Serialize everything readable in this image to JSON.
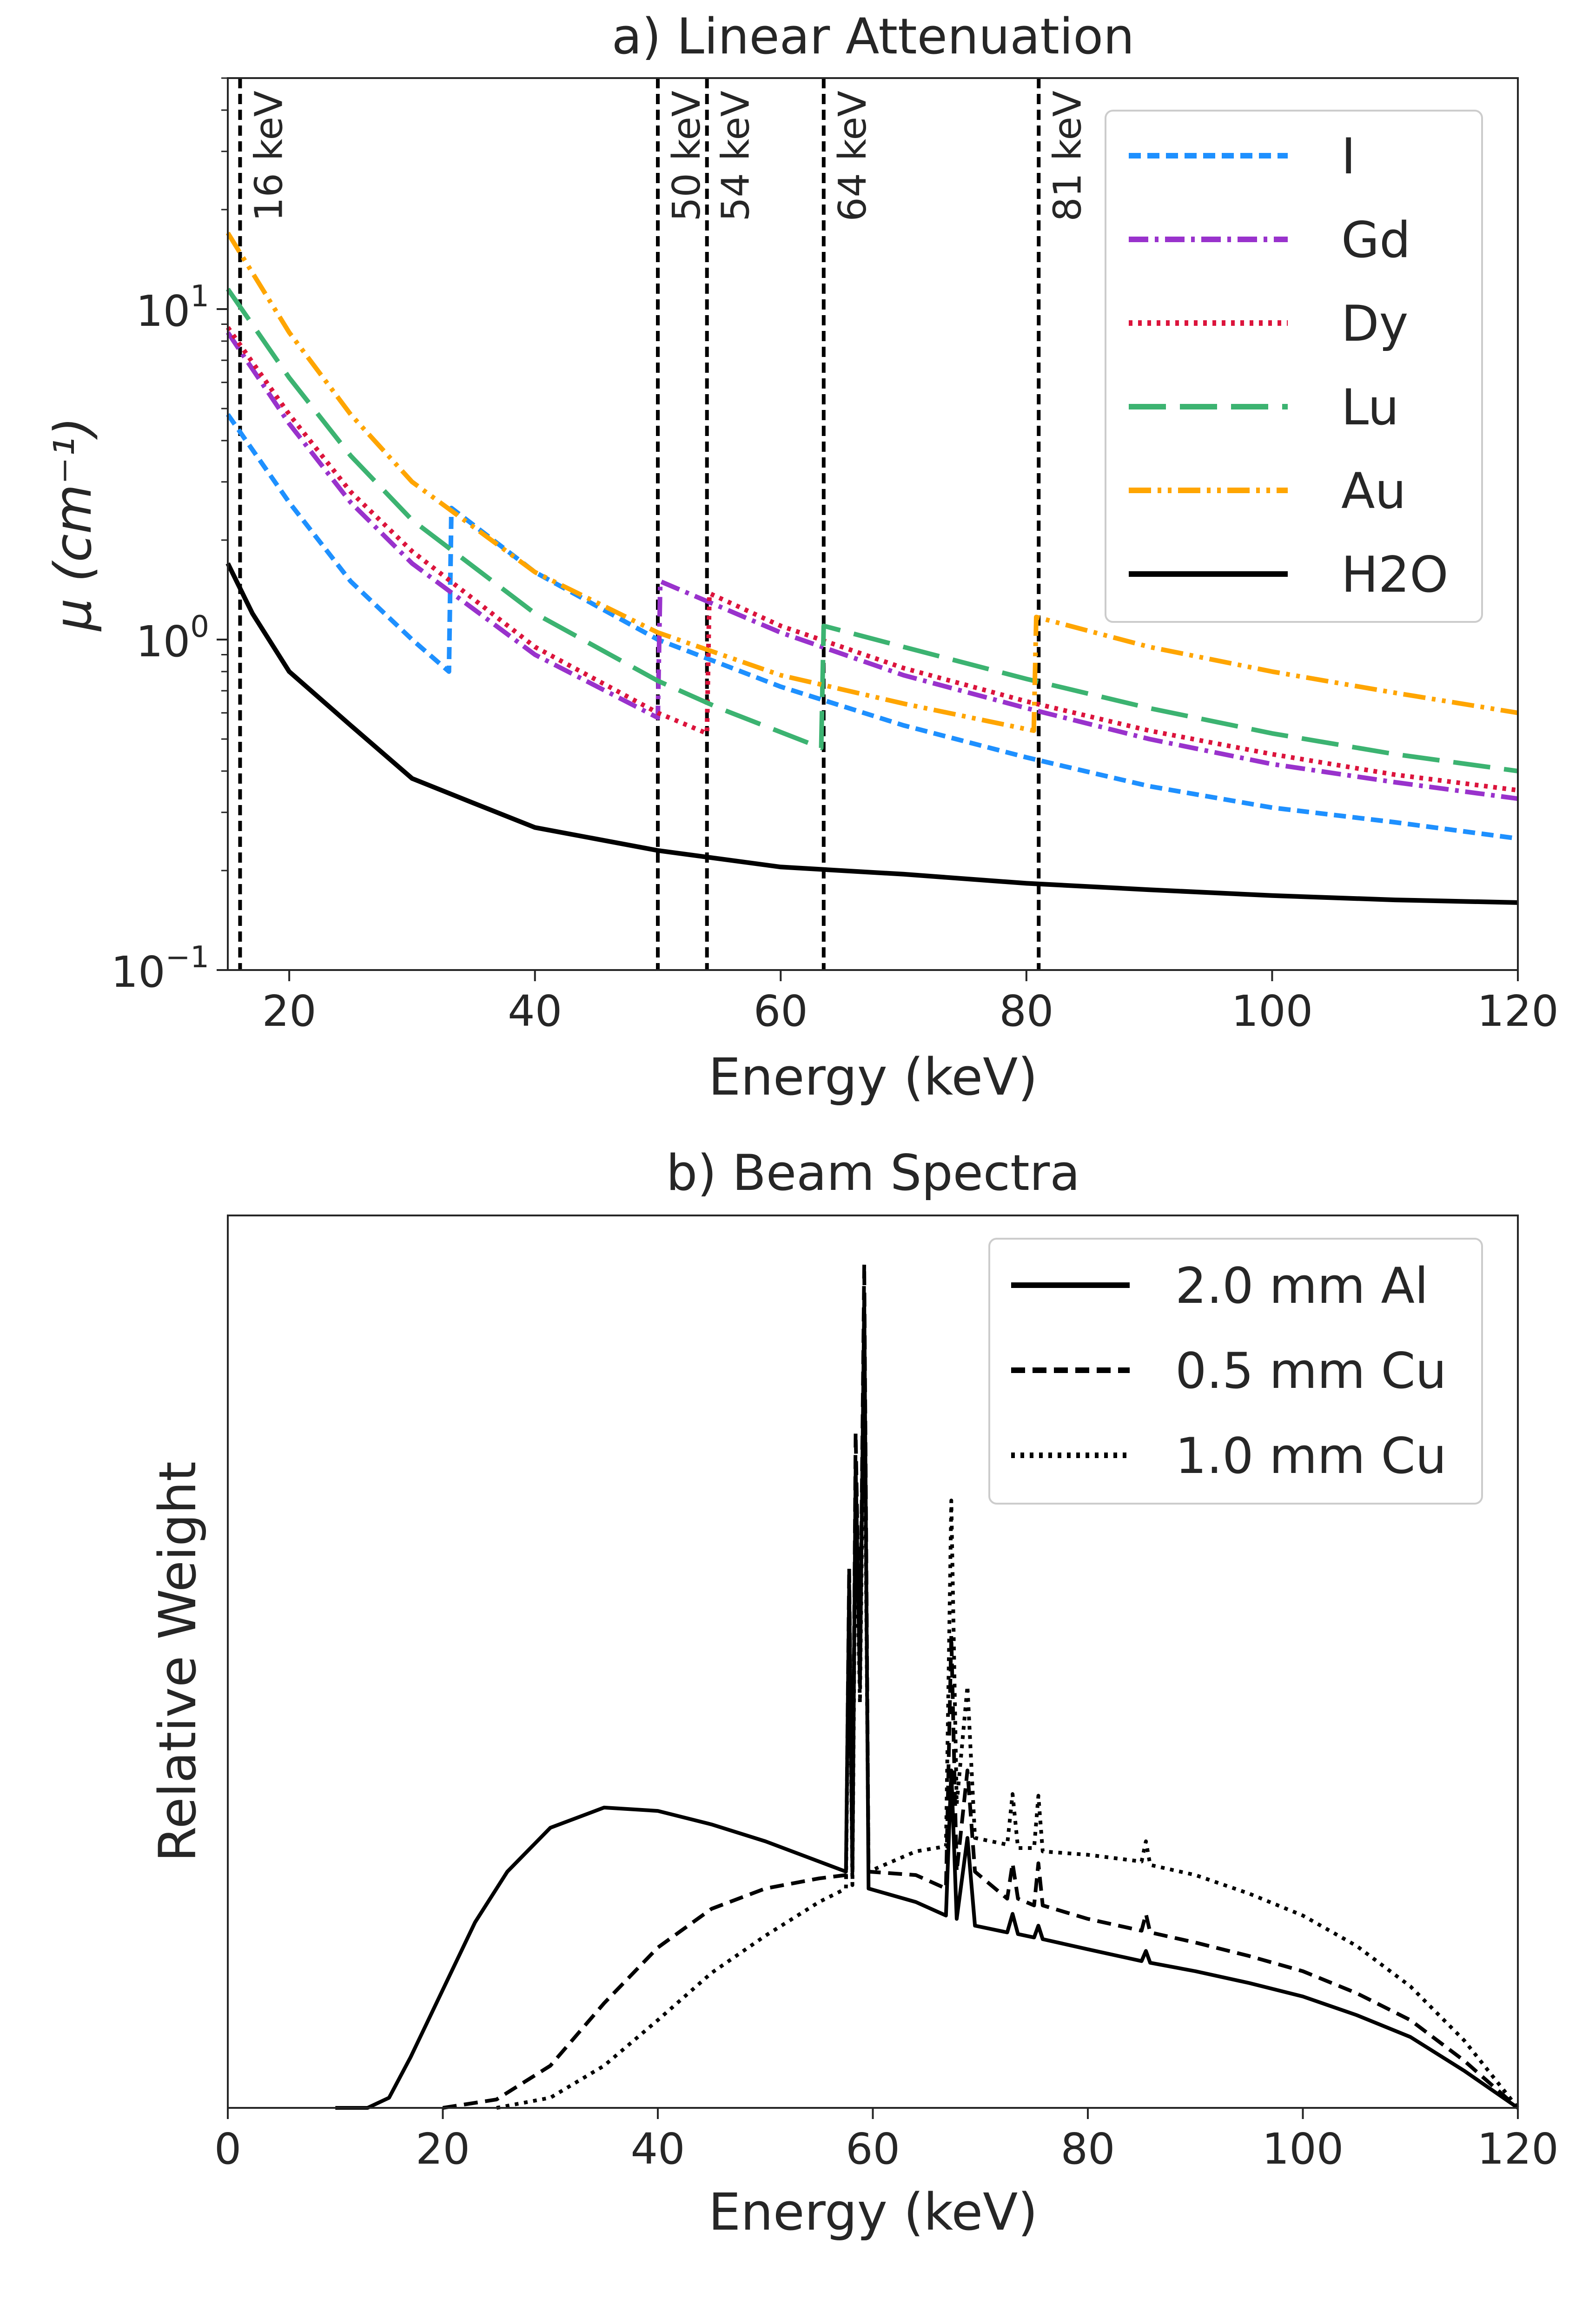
{
  "chart_data": [
    {
      "type": "line",
      "title": "a) Linear Attenuation",
      "xlabel": "Energy (keV)",
      "ylabel": "μ (cm⁻¹)",
      "yscale": "log",
      "xlim": [
        15,
        120
      ],
      "ylim": [
        0.1,
        50
      ],
      "xticks": [
        20,
        40,
        60,
        80,
        100,
        120
      ],
      "yticks": [
        {
          "value": 0.1,
          "base": "10",
          "exp": "−1"
        },
        {
          "value": 1,
          "base": "10",
          "exp": "0"
        },
        {
          "value": 10,
          "base": "10",
          "exp": "1"
        }
      ],
      "vlines": [
        {
          "x": 16,
          "label": "16 keV"
        },
        {
          "x": 50,
          "label": "50 keV"
        },
        {
          "x": 54,
          "label": "54 keV"
        },
        {
          "x": 63.5,
          "label": "64 keV"
        },
        {
          "x": 81,
          "label": "81 keV"
        }
      ],
      "legend_position": "top-right",
      "series": [
        {
          "name": "I",
          "color": "#1E90FF",
          "dash": "dash",
          "points": [
            [
              15,
              4.8
            ],
            [
              20,
              2.6
            ],
            [
              25,
              1.5
            ],
            [
              30,
              1.0
            ],
            [
              33,
              0.8
            ],
            [
              33.2,
              2.5
            ],
            [
              40,
              1.6
            ],
            [
              50,
              1.0
            ],
            [
              60,
              0.72
            ],
            [
              70,
              0.55
            ],
            [
              80,
              0.44
            ],
            [
              90,
              0.36
            ],
            [
              100,
              0.31
            ],
            [
              110,
              0.28
            ],
            [
              120,
              0.25
            ]
          ]
        },
        {
          "name": "Gd",
          "color": "#9932CC",
          "dash": "dashdot",
          "points": [
            [
              15,
              8.5
            ],
            [
              20,
              4.5
            ],
            [
              25,
              2.6
            ],
            [
              30,
              1.7
            ],
            [
              40,
              0.9
            ],
            [
              50,
              0.58
            ],
            [
              50.2,
              1.5
            ],
            [
              60,
              1.05
            ],
            [
              70,
              0.78
            ],
            [
              80,
              0.62
            ],
            [
              90,
              0.5
            ],
            [
              100,
              0.42
            ],
            [
              110,
              0.37
            ],
            [
              120,
              0.33
            ]
          ]
        },
        {
          "name": "Dy",
          "color": "#DC143C",
          "dash": "dot",
          "points": [
            [
              15,
              8.8
            ],
            [
              20,
              4.8
            ],
            [
              25,
              2.8
            ],
            [
              30,
              1.85
            ],
            [
              40,
              0.95
            ],
            [
              50,
              0.6
            ],
            [
              54,
              0.52
            ],
            [
              54.2,
              1.38
            ],
            [
              60,
              1.1
            ],
            [
              70,
              0.82
            ],
            [
              80,
              0.65
            ],
            [
              90,
              0.53
            ],
            [
              100,
              0.45
            ],
            [
              110,
              0.39
            ],
            [
              120,
              0.35
            ]
          ]
        },
        {
          "name": "Lu",
          "color": "#3CB371",
          "dash": "longdash",
          "points": [
            [
              15,
              11.5
            ],
            [
              20,
              6.2
            ],
            [
              25,
              3.6
            ],
            [
              30,
              2.3
            ],
            [
              40,
              1.2
            ],
            [
              50,
              0.75
            ],
            [
              55,
              0.62
            ],
            [
              63.3,
              0.47
            ],
            [
              63.5,
              1.1
            ],
            [
              70,
              0.95
            ],
            [
              80,
              0.76
            ],
            [
              90,
              0.62
            ],
            [
              100,
              0.52
            ],
            [
              110,
              0.45
            ],
            [
              120,
              0.4
            ]
          ]
        },
        {
          "name": "Au",
          "color": "#FFA500",
          "dash": "dashdotdot",
          "points": [
            [
              15,
              17
            ],
            [
              20,
              8.5
            ],
            [
              25,
              4.8
            ],
            [
              30,
              3.0
            ],
            [
              40,
              1.6
            ],
            [
              50,
              1.05
            ],
            [
              60,
              0.78
            ],
            [
              70,
              0.64
            ],
            [
              80.6,
              0.53
            ],
            [
              80.8,
              1.17
            ],
            [
              90,
              0.95
            ],
            [
              100,
              0.8
            ],
            [
              110,
              0.69
            ],
            [
              120,
              0.6
            ]
          ]
        },
        {
          "name": "H2O",
          "color": "#000000",
          "dash": "solid",
          "points": [
            [
              15,
              1.7
            ],
            [
              17,
              1.2
            ],
            [
              20,
              0.8
            ],
            [
              25,
              0.55
            ],
            [
              30,
              0.38
            ],
            [
              35,
              0.32
            ],
            [
              40,
              0.27
            ],
            [
              50,
              0.23
            ],
            [
              60,
              0.205
            ],
            [
              70,
              0.195
            ],
            [
              80,
              0.183
            ],
            [
              90,
              0.175
            ],
            [
              100,
              0.168
            ],
            [
              110,
              0.163
            ],
            [
              120,
              0.16
            ]
          ]
        }
      ]
    },
    {
      "type": "line",
      "title": "b) Beam Spectra",
      "xlabel": "Energy (keV)",
      "ylabel": "Relative Weight",
      "xlim": [
        0,
        120
      ],
      "ylim": [
        0,
        1
      ],
      "xticks": [
        0,
        20,
        40,
        60,
        80,
        100,
        120
      ],
      "legend_position": "top-right",
      "series": [
        {
          "name": "2.0 mm Al",
          "color": "#000000",
          "dash": "solid",
          "points": [
            [
              10,
              0
            ],
            [
              13,
              0
            ],
            [
              15,
              0.006
            ],
            [
              17,
              0.03
            ],
            [
              20,
              0.07
            ],
            [
              23,
              0.11
            ],
            [
              26,
              0.14
            ],
            [
              30,
              0.166
            ],
            [
              35,
              0.178
            ],
            [
              40,
              0.176
            ],
            [
              45,
              0.168
            ],
            [
              50,
              0.158
            ],
            [
              55,
              0.146
            ],
            [
              57.5,
              0.14
            ],
            [
              57.8,
              0.31
            ],
            [
              58.1,
              0.14
            ],
            [
              58.4,
              0.38
            ],
            [
              58.8,
              0.25
            ],
            [
              59.2,
              0.48
            ],
            [
              59.6,
              0.13
            ],
            [
              64,
              0.122
            ],
            [
              66.8,
              0.114
            ],
            [
              67.3,
              0.2
            ],
            [
              67.8,
              0.112
            ],
            [
              68.8,
              0.16
            ],
            [
              69.5,
              0.108
            ],
            [
              72.5,
              0.104
            ],
            [
              73,
              0.115
            ],
            [
              73.5,
              0.103
            ],
            [
              75,
              0.101
            ],
            [
              75.4,
              0.108
            ],
            [
              75.8,
              0.1
            ],
            [
              80,
              0.094
            ],
            [
              85,
              0.087
            ],
            [
              85.4,
              0.093
            ],
            [
              85.8,
              0.086
            ],
            [
              90,
              0.081
            ],
            [
              95,
              0.074
            ],
            [
              100,
              0.066
            ],
            [
              105,
              0.055
            ],
            [
              110,
              0.042
            ],
            [
              115,
              0.022
            ],
            [
              120,
              0
            ]
          ]
        },
        {
          "name": "0.5 mm Cu",
          "color": "#000000",
          "dash": "dash",
          "points": [
            [
              20,
              0
            ],
            [
              25,
              0.005
            ],
            [
              30,
              0.025
            ],
            [
              35,
              0.062
            ],
            [
              40,
              0.095
            ],
            [
              45,
              0.118
            ],
            [
              50,
              0.13
            ],
            [
              55,
              0.136
            ],
            [
              57.5,
              0.138
            ],
            [
              57.8,
              0.32
            ],
            [
              58.1,
              0.14
            ],
            [
              58.4,
              0.4
            ],
            [
              58.8,
              0.26
            ],
            [
              59.2,
              0.5
            ],
            [
              59.6,
              0.14
            ],
            [
              64,
              0.138
            ],
            [
              66.8,
              0.13
            ],
            [
              67.3,
              0.28
            ],
            [
              67.8,
              0.14
            ],
            [
              68.8,
              0.2
            ],
            [
              69.5,
              0.14
            ],
            [
              72.5,
              0.124
            ],
            [
              73,
              0.145
            ],
            [
              73.5,
              0.124
            ],
            [
              75,
              0.12
            ],
            [
              75.4,
              0.145
            ],
            [
              75.8,
              0.12
            ],
            [
              80,
              0.112
            ],
            [
              85,
              0.105
            ],
            [
              85.4,
              0.115
            ],
            [
              85.8,
              0.104
            ],
            [
              90,
              0.098
            ],
            [
              95,
              0.09
            ],
            [
              100,
              0.081
            ],
            [
              105,
              0.068
            ],
            [
              110,
              0.052
            ],
            [
              115,
              0.028
            ],
            [
              120,
              0
            ]
          ]
        },
        {
          "name": "1.0 mm Cu",
          "color": "#000000",
          "dash": "dot",
          "points": [
            [
              25,
              0
            ],
            [
              30,
              0.006
            ],
            [
              35,
              0.025
            ],
            [
              40,
              0.052
            ],
            [
              45,
              0.08
            ],
            [
              50,
              0.102
            ],
            [
              55,
              0.122
            ],
            [
              57.5,
              0.13
            ],
            [
              57.8,
              0.3
            ],
            [
              58.1,
              0.132
            ],
            [
              58.4,
              0.36
            ],
            [
              58.8,
              0.24
            ],
            [
              59.2,
              0.44
            ],
            [
              59.6,
              0.14
            ],
            [
              64,
              0.152
            ],
            [
              66.8,
              0.155
            ],
            [
              67.3,
              0.36
            ],
            [
              67.8,
              0.18
            ],
            [
              68.8,
              0.25
            ],
            [
              69.5,
              0.16
            ],
            [
              72.5,
              0.156
            ],
            [
              73,
              0.186
            ],
            [
              73.5,
              0.154
            ],
            [
              75,
              0.154
            ],
            [
              75.4,
              0.185
            ],
            [
              75.8,
              0.152
            ],
            [
              80,
              0.15
            ],
            [
              85,
              0.146
            ],
            [
              85.4,
              0.158
            ],
            [
              85.8,
              0.144
            ],
            [
              90,
              0.138
            ],
            [
              95,
              0.127
            ],
            [
              100,
              0.114
            ],
            [
              105,
              0.096
            ],
            [
              110,
              0.072
            ],
            [
              115,
              0.04
            ],
            [
              120,
              0
            ]
          ]
        }
      ]
    }
  ]
}
